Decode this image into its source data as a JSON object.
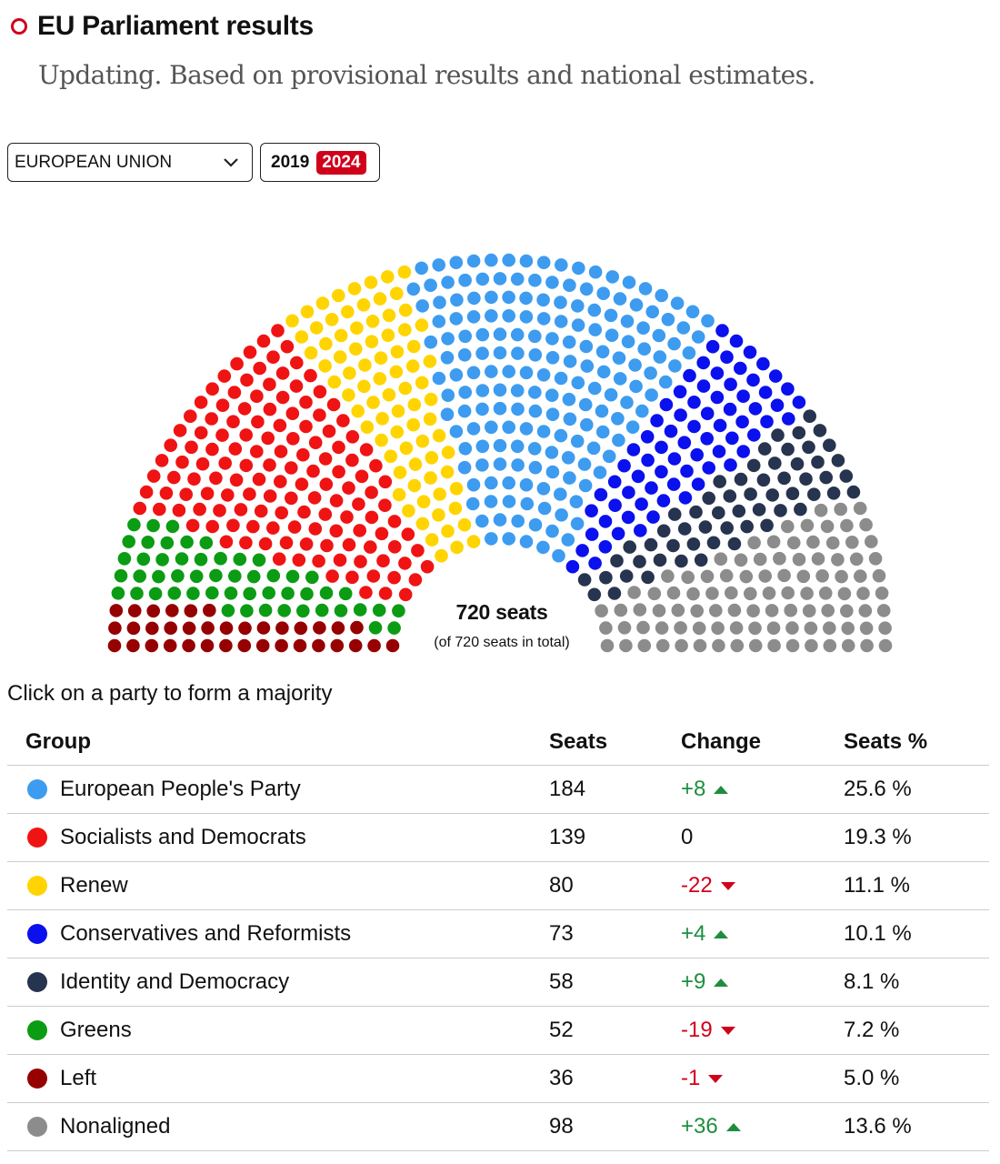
{
  "header": {
    "title": "EU Parliament results",
    "subtitle": "Updating. Based on provisional results and national estimates."
  },
  "controls": {
    "region": "EUROPEAN UNION",
    "years": [
      "2019",
      "2024"
    ],
    "selected_year": "2024"
  },
  "summary": {
    "total_label": "720 seats",
    "sub_label": "(of 720 seats in total)"
  },
  "instruction": "Click on a party to form a majority",
  "table": {
    "headers": {
      "group": "Group",
      "seats": "Seats",
      "change": "Change",
      "pct": "Seats %"
    }
  },
  "chart_data": {
    "type": "parliament",
    "total_seats": 720,
    "order": [
      "Left",
      "Greens",
      "Socialists and Democrats",
      "Renew",
      "European People's Party",
      "Conservatives and Reformists",
      "Identity and Democracy",
      "Nonaligned"
    ],
    "parties": [
      {
        "name": "European People's Party",
        "seats": 184,
        "change": "+8",
        "direction": "up",
        "pct": "25.6 %",
        "color": "#3d9cf0"
      },
      {
        "name": "Socialists and Democrats",
        "seats": 139,
        "change": "0",
        "direction": "none",
        "pct": "19.3 %",
        "color": "#f01313"
      },
      {
        "name": "Renew",
        "seats": 80,
        "change": "-22",
        "direction": "down",
        "pct": "11.1 %",
        "color": "#ffd400"
      },
      {
        "name": "Conservatives and Reformists",
        "seats": 73,
        "change": "+4",
        "direction": "up",
        "pct": "10.1 %",
        "color": "#0b10ee"
      },
      {
        "name": "Identity and Democracy",
        "seats": 58,
        "change": "+9",
        "direction": "up",
        "pct": "8.1 %",
        "color": "#27344f"
      },
      {
        "name": "Greens",
        "seats": 52,
        "change": "-19",
        "direction": "down",
        "pct": "7.2 %",
        "color": "#0b9c14"
      },
      {
        "name": "Left",
        "seats": 36,
        "change": "-1",
        "direction": "down",
        "pct": "5.0 %",
        "color": "#960000"
      },
      {
        "name": "Nonaligned",
        "seats": 98,
        "change": "+36",
        "direction": "up",
        "pct": "13.6 %",
        "color": "#8c8c8c"
      }
    ]
  }
}
